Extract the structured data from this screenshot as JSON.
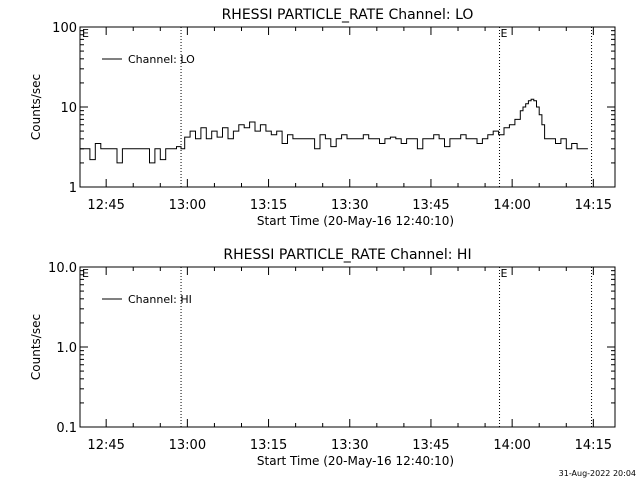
{
  "footer": {
    "timestamp": "31-Aug-2022 20:04"
  },
  "chart_data": [
    {
      "type": "line",
      "title": "RHESSI PARTICLE_RATE Channel: LO",
      "xlabel": "Start Time (20-May-16 12:40:10)",
      "ylabel": "Counts/sec",
      "yscale": "log",
      "ylim": [
        1,
        100
      ],
      "xlim": [
        "12:40:10",
        "14:19:00"
      ],
      "x_ticks": [
        "12:45",
        "13:00",
        "13:15",
        "13:30",
        "13:45",
        "14:00",
        "14:15"
      ],
      "y_ticks": [
        "1",
        "10",
        "100"
      ],
      "legend": {
        "position": "top-left",
        "entries": [
          "Channel: LO"
        ]
      },
      "event_markers": [
        {
          "time": "12:58:50",
          "label": ""
        },
        {
          "time": "13:57:40",
          "label": "E"
        },
        {
          "time": "14:14:40",
          "label": ""
        }
      ],
      "corner_label": "E",
      "series": [
        {
          "name": "Channel: LO",
          "x": [
            "12:40:10",
            "12:41:00",
            "12:42:00",
            "12:43:00",
            "12:44:00",
            "12:45:00",
            "12:46:00",
            "12:47:00",
            "12:48:00",
            "12:49:00",
            "12:50:00",
            "12:51:00",
            "12:52:00",
            "12:53:00",
            "12:54:00",
            "12:55:00",
            "12:56:00",
            "12:57:00",
            "12:58:00",
            "12:58:50",
            "12:59:30",
            "13:00:30",
            "13:01:30",
            "13:02:30",
            "13:03:30",
            "13:04:30",
            "13:05:30",
            "13:06:30",
            "13:07:30",
            "13:08:30",
            "13:09:30",
            "13:10:30",
            "13:11:30",
            "13:12:30",
            "13:13:30",
            "13:14:30",
            "13:15:30",
            "13:16:30",
            "13:17:30",
            "13:18:30",
            "13:19:30",
            "13:20:30",
            "13:21:30",
            "13:22:30",
            "13:23:30",
            "13:24:30",
            "13:25:30",
            "13:26:30",
            "13:27:30",
            "13:28:30",
            "13:29:30",
            "13:30:30",
            "13:31:30",
            "13:32:30",
            "13:33:30",
            "13:34:30",
            "13:35:30",
            "13:36:30",
            "13:37:30",
            "13:38:30",
            "13:39:30",
            "13:40:30",
            "13:41:30",
            "13:42:30",
            "13:43:30",
            "13:44:30",
            "13:45:30",
            "13:46:30",
            "13:47:30",
            "13:48:30",
            "13:49:30",
            "13:50:30",
            "13:51:30",
            "13:52:30",
            "13:53:30",
            "13:54:30",
            "13:55:30",
            "13:56:30",
            "13:57:30",
            "13:58:30",
            "13:59:30",
            "14:00:30",
            "14:01:30",
            "14:02:00",
            "14:02:30",
            "14:03:00",
            "14:03:30",
            "14:04:00",
            "14:04:30",
            "14:05:00",
            "14:05:30",
            "14:06:00",
            "14:07:00",
            "14:08:00",
            "14:09:00",
            "14:10:00",
            "14:11:00",
            "14:12:00",
            "14:13:00",
            "14:14:00"
          ],
          "values": [
            3,
            3,
            2.2,
            3.5,
            3,
            3,
            3,
            2,
            3,
            3,
            3,
            3,
            3,
            2,
            3,
            2.2,
            3,
            3,
            3.2,
            3,
            4.2,
            5,
            4,
            5.5,
            4,
            5,
            4.2,
            5.5,
            4,
            5,
            6,
            5.5,
            6.5,
            5,
            6,
            5,
            4.5,
            5,
            3.5,
            4.5,
            4,
            4,
            4,
            4,
            3,
            4.5,
            4,
            3.2,
            4,
            4.5,
            4,
            4,
            4,
            4.5,
            4,
            4,
            3.5,
            4,
            4.2,
            4,
            3.5,
            4,
            4,
            3,
            4,
            4,
            4.5,
            4,
            3.2,
            4,
            4,
            4.5,
            4,
            4,
            3.5,
            4,
            4.5,
            5,
            4.5,
            5.5,
            6,
            7,
            9,
            10,
            11,
            12,
            12.5,
            12,
            10,
            8,
            6,
            4,
            4,
            3.5,
            4,
            3,
            3.5,
            3,
            3,
            3
          ]
        }
      ]
    },
    {
      "type": "line",
      "title": "RHESSI PARTICLE_RATE Channel: HI",
      "xlabel": "Start Time (20-May-16 12:40:10)",
      "ylabel": "Counts/sec",
      "yscale": "log",
      "ylim": [
        0.1,
        10
      ],
      "xlim": [
        "12:40:10",
        "14:19:00"
      ],
      "x_ticks": [
        "12:45",
        "13:00",
        "13:15",
        "13:30",
        "13:45",
        "14:00",
        "14:15"
      ],
      "y_ticks": [
        "0.1",
        "1.0",
        "10.0"
      ],
      "legend": {
        "position": "top-left",
        "entries": [
          "Channel: HI"
        ]
      },
      "event_markers": [
        {
          "time": "12:58:50",
          "label": ""
        },
        {
          "time": "13:57:40",
          "label": "E"
        },
        {
          "time": "14:14:40",
          "label": ""
        }
      ],
      "corner_label": "E",
      "series": [
        {
          "name": "Channel: HI",
          "x": [],
          "values": []
        }
      ]
    }
  ]
}
